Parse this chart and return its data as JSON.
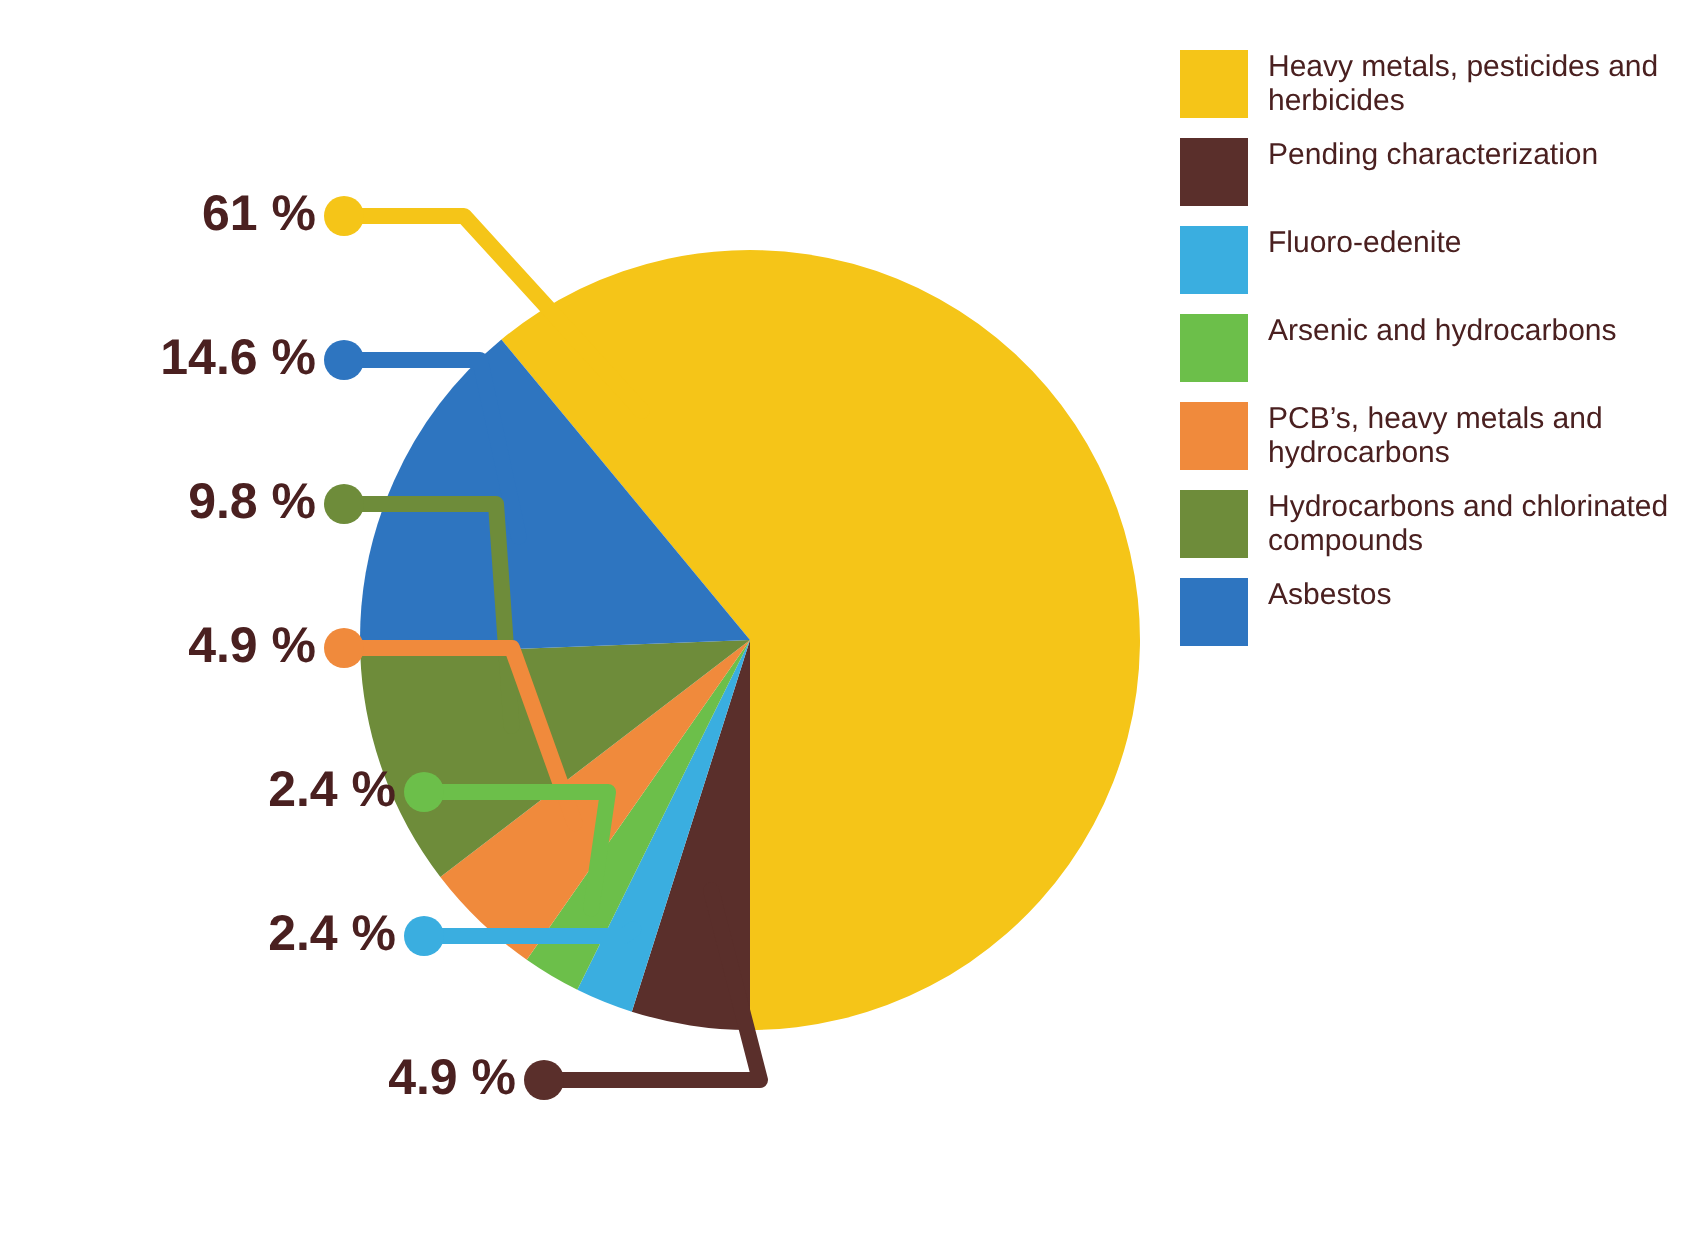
{
  "chart_data": {
    "type": "pie",
    "categories": [
      "Heavy metals, pesticides and herbicides",
      "Pending characterization",
      "Fluoro-edenite",
      "Arsenic and hydrocarbons",
      "PCB’s, heavy metals and hydrocarbons",
      "Hydrocarbons and chlorinated compounds",
      "Asbestos"
    ],
    "values": [
      61,
      4.9,
      2.4,
      2.4,
      4.9,
      9.8,
      14.6
    ],
    "colors": [
      "#f5c518",
      "#5a2f2b",
      "#3aaee0",
      "#6cbf4a",
      "#f08a3c",
      "#6e8c3a",
      "#2e75c0"
    ],
    "value_labels": [
      "61 %",
      "4.9 %",
      "2.4 %",
      "2.4 %",
      "4.9 %",
      "9.8 %",
      "14.6 %"
    ],
    "legend": "right"
  }
}
